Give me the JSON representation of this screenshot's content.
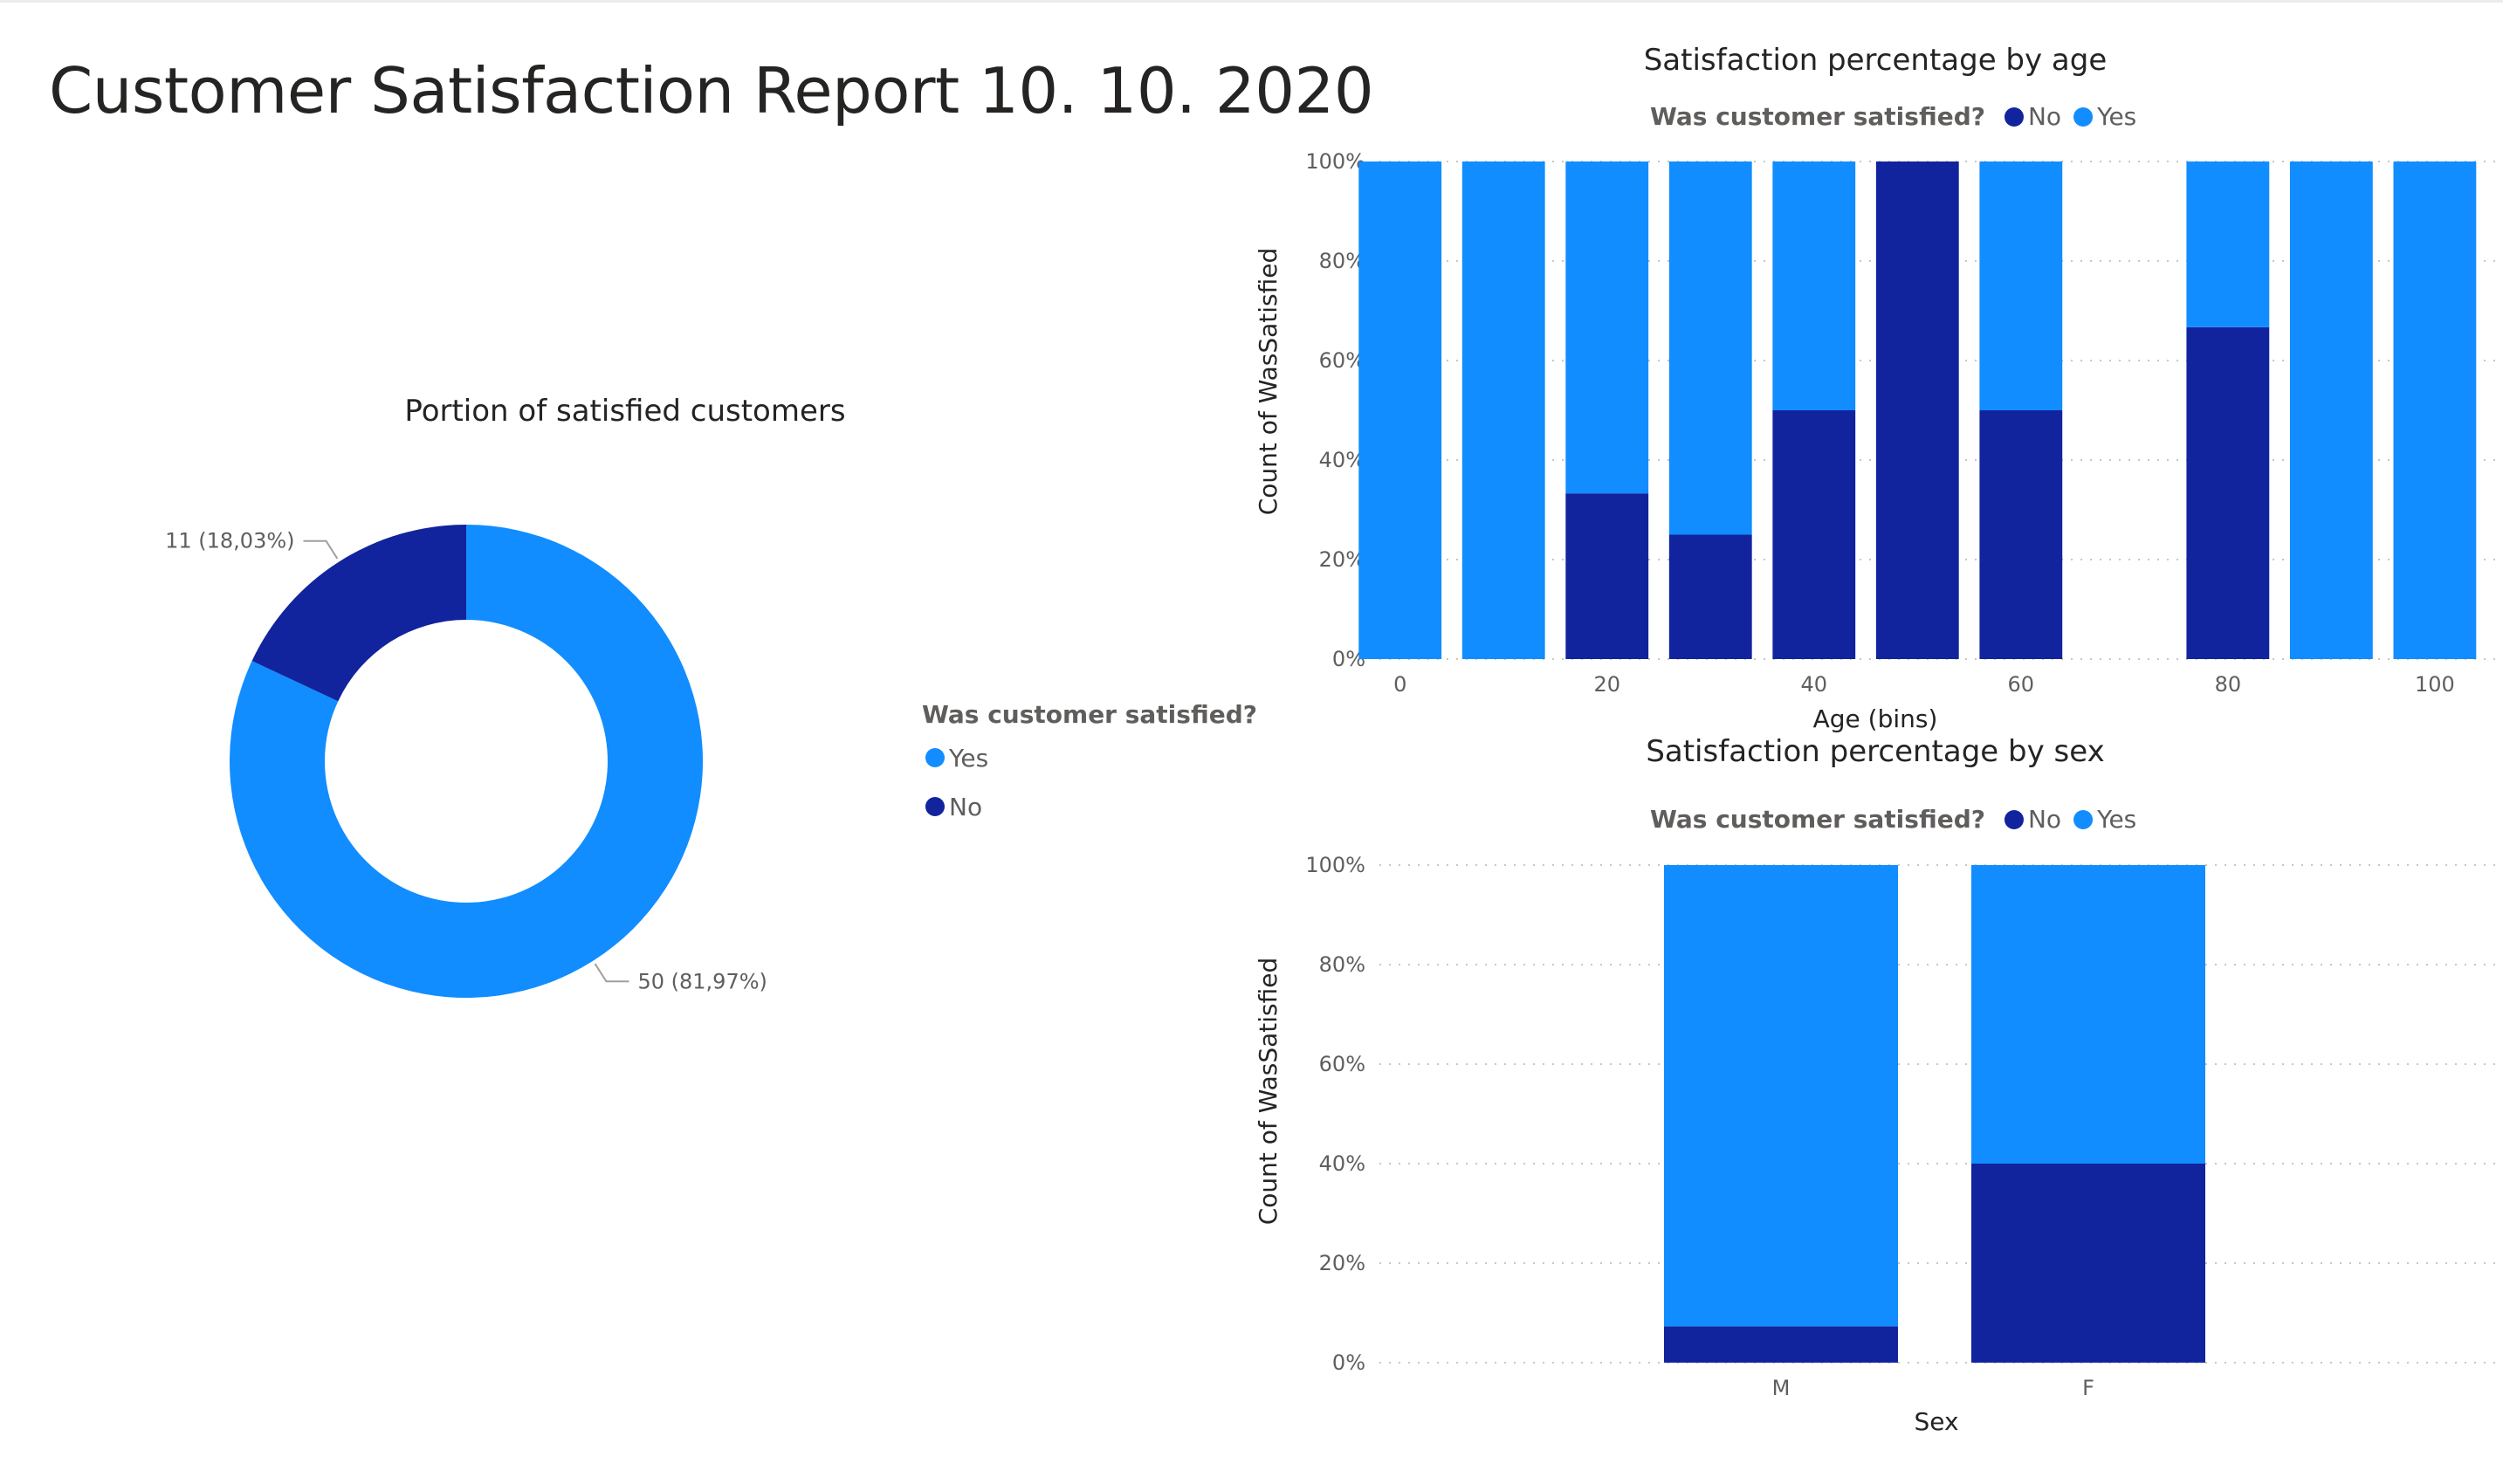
{
  "report_title": "Customer Satisfaction Report 10. 10. 2020",
  "colors": {
    "no": "#12239e",
    "yes": "#118dff"
  },
  "chart_data": [
    {
      "type": "pie",
      "title": "Portion of satisfied customers",
      "legend_title": "Was customer satisfied?",
      "legend_position": "right",
      "slices": [
        {
          "name": "Yes",
          "value": 50,
          "label": "50 (81,97%)"
        },
        {
          "name": "No",
          "value": 11,
          "label": "11 (18,03%)"
        }
      ]
    },
    {
      "type": "bar",
      "stacked": "100%",
      "title": "Satisfaction percentage by age",
      "legend_title": "Was customer satisfied?",
      "legend_position": "top",
      "xlabel": "Age (bins)",
      "ylabel": "Count of WasSatisfied",
      "x_ticks": [
        "0",
        "20",
        "40",
        "60",
        "80",
        "100"
      ],
      "y_ticks": [
        "0%",
        "20%",
        "40%",
        "60%",
        "80%",
        "100%"
      ],
      "xlim": [
        -2,
        106
      ],
      "ylim": [
        0,
        100
      ],
      "x": [
        0,
        10,
        20,
        30,
        40,
        50,
        60,
        80,
        90,
        100
      ],
      "series": [
        {
          "name": "No",
          "values": [
            0,
            0,
            33.3,
            25,
            50,
            100,
            50,
            66.7,
            0,
            0
          ]
        },
        {
          "name": "Yes",
          "values": [
            100,
            100,
            66.7,
            75,
            50,
            0,
            50,
            33.3,
            100,
            100
          ]
        }
      ]
    },
    {
      "type": "bar",
      "stacked": "100%",
      "title": "Satisfaction percentage by sex",
      "legend_title": "Was customer satisfied?",
      "legend_position": "top",
      "xlabel": "Sex",
      "ylabel": "Count of WasSatisfied",
      "y_ticks": [
        "0%",
        "20%",
        "40%",
        "60%",
        "80%",
        "100%"
      ],
      "ylim": [
        0,
        100
      ],
      "categories": [
        "M",
        "F"
      ],
      "series": [
        {
          "name": "No",
          "values": [
            7.3,
            40
          ]
        },
        {
          "name": "Yes",
          "values": [
            92.7,
            60
          ]
        }
      ]
    }
  ]
}
